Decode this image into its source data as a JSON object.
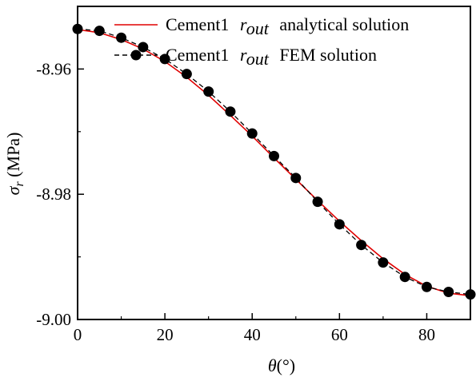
{
  "chart_data": {
    "type": "line",
    "xlabel_symbol": "θ",
    "xlabel_unit": "(°)",
    "ylabel_symbol": "σ",
    "ylabel_subscript": "r",
    "ylabel_unit": " (MPa)",
    "xlim": [
      0,
      90
    ],
    "ylim": [
      -9.0,
      -8.95
    ],
    "xticks": [
      0,
      20,
      40,
      60,
      80
    ],
    "xtick_labels": [
      "0",
      "20",
      "40",
      "60",
      "80"
    ],
    "yticks": [
      -9.0,
      -8.98,
      -8.96
    ],
    "ytick_labels": [
      "-9.00",
      "-8.98",
      "-8.96"
    ],
    "legend_position": "top-right",
    "grid": false,
    "series": [
      {
        "name_prefix": "Cement1",
        "name_r": "r",
        "name_r_sub": "out",
        "name_suffix": "analytical solution",
        "style": "solid-line",
        "color": "#e00000",
        "x": [
          0,
          5,
          10,
          15,
          20,
          25,
          30,
          35,
          40,
          45,
          50,
          55,
          60,
          65,
          70,
          75,
          80,
          85,
          90
        ],
        "y": [
          -8.9537,
          -8.9542,
          -8.9553,
          -8.9568,
          -8.9588,
          -8.9613,
          -8.9642,
          -8.9674,
          -8.9707,
          -8.9742,
          -8.9776,
          -8.981,
          -8.9843,
          -8.9874,
          -8.9903,
          -8.9928,
          -8.9947,
          -8.9958,
          -8.9962
        ]
      },
      {
        "name_prefix": "Cement1",
        "name_r": "r",
        "name_r_sub": "out",
        "name_suffix": "FEM solution",
        "style": "dashed-line-markers",
        "color": "#000000",
        "x": [
          0,
          5,
          10,
          15,
          20,
          25,
          30,
          35,
          40,
          45,
          50,
          55,
          60,
          65,
          70,
          75,
          80,
          85,
          90
        ],
        "y": [
          -8.9536,
          -8.9539,
          -8.955,
          -8.9565,
          -8.9584,
          -8.9608,
          -8.9636,
          -8.9668,
          -8.9703,
          -8.9739,
          -8.9774,
          -8.9812,
          -8.9848,
          -8.9881,
          -8.9909,
          -8.9932,
          -8.9948,
          -8.9956,
          -8.996
        ]
      }
    ]
  }
}
